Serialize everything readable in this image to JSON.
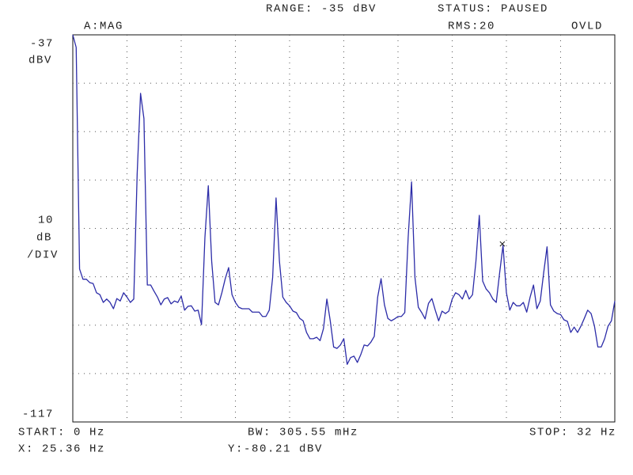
{
  "screen": {
    "range": "RANGE: -35 dBV",
    "status": "STATUS: PAUSED",
    "mode": "A:MAG",
    "rms": "RMS:20",
    "ovld": "OVLD",
    "start": "START: 0 Hz",
    "bw": "BW: 305.55 mHz",
    "stop": "STOP: 32 Hz",
    "cursor_x": "X: 25.36 Hz",
    "cursor_y": "Y:-80.21 dBV"
  },
  "chart_data": {
    "type": "line",
    "y_unit": "dBV",
    "ydiv": 10,
    "ydiv_unit": "dB",
    "ydiv_suffix": "/DIV",
    "ylim": [
      -37,
      -117
    ],
    "yticks": [
      -37,
      -117
    ],
    "xlim": [
      0,
      32
    ],
    "xdivisions": 10,
    "grid": true,
    "cursor": {
      "x": 25.36,
      "y": -80.21
    },
    "x": [
      0,
      0.2,
      0.4,
      0.6,
      0.8,
      1,
      1.2,
      1.4,
      1.6,
      1.8,
      2,
      2.2,
      2.4,
      2.6,
      2.8,
      3,
      3.2,
      3.4,
      3.6,
      3.8,
      4,
      4.2,
      4.4,
      4.6,
      4.8,
      5,
      5.2,
      5.4,
      5.6,
      5.8,
      6,
      6.2,
      6.4,
      6.6,
      6.8,
      7,
      7.2,
      7.4,
      7.6,
      7.8,
      8,
      8.2,
      8.4,
      8.6,
      8.8,
      9,
      9.2,
      9.4,
      9.6,
      9.8,
      10,
      10.2,
      10.4,
      10.6,
      10.8,
      11,
      11.2,
      11.4,
      11.6,
      11.8,
      12,
      12.2,
      12.4,
      12.6,
      12.8,
      13,
      13.2,
      13.4,
      13.6,
      13.8,
      14,
      14.2,
      14.4,
      14.6,
      14.8,
      15,
      15.2,
      15.4,
      15.6,
      15.8,
      16,
      16.2,
      16.4,
      16.6,
      16.8,
      17,
      17.2,
      17.4,
      17.6,
      17.8,
      18,
      18.2,
      18.4,
      18.6,
      18.8,
      19,
      19.2,
      19.4,
      19.6,
      19.8,
      20,
      20.2,
      20.4,
      20.6,
      20.8,
      21,
      21.2,
      21.4,
      21.6,
      21.8,
      22,
      22.2,
      22.4,
      22.6,
      22.8,
      23,
      23.2,
      23.4,
      23.6,
      23.8,
      24,
      24.2,
      24.4,
      24.6,
      24.8,
      25,
      25.2,
      25.4,
      25.6,
      25.8,
      26,
      26.2,
      26.4,
      26.6,
      26.8,
      27,
      27.2,
      27.4,
      27.6,
      27.8,
      28,
      28.2,
      28.4,
      28.6,
      28.8,
      29,
      29.2,
      29.4,
      29.6,
      29.8,
      30,
      30.2,
      30.4,
      30.6,
      30.8,
      31,
      31.2,
      31.4,
      31.6,
      31.8,
      32
    ],
    "series": [
      {
        "color": "#2c2ca8",
        "values": [
          -37,
          -39.6,
          -85.4,
          -87.5,
          -87.5,
          -88.2,
          -88.4,
          -90.3,
          -90.7,
          -92.3,
          -91.6,
          -92.3,
          -93.6,
          -91.5,
          -92,
          -90.3,
          -91.2,
          -92.3,
          -91.6,
          -65.8,
          -49.1,
          -54.3,
          -88.7,
          -88.7,
          -90,
          -91.2,
          -92.8,
          -91.6,
          -91.3,
          -92.6,
          -92,
          -92.3,
          -91,
          -93.9,
          -93.1,
          -93,
          -94.1,
          -93.9,
          -96.9,
          -78.9,
          -68.2,
          -83.8,
          -92.3,
          -92.8,
          -90.3,
          -87.4,
          -85.1,
          -90.7,
          -92.3,
          -93.3,
          -93.6,
          -93.6,
          -93.6,
          -94.3,
          -94.3,
          -94.3,
          -95.2,
          -95.2,
          -93.9,
          -87.1,
          -70.7,
          -83.8,
          -91.2,
          -92.3,
          -93,
          -94.1,
          -94.4,
          -95.6,
          -96.1,
          -98.5,
          -99.8,
          -99.8,
          -99.5,
          -100.2,
          -97.7,
          -91.6,
          -96.1,
          -101.5,
          -101.8,
          -101.1,
          -99.8,
          -105.1,
          -103.7,
          -103.4,
          -104.7,
          -103.1,
          -101.1,
          -101.3,
          -100.5,
          -99.3,
          -91.2,
          -87.4,
          -92.8,
          -95.6,
          -96.1,
          -95.7,
          -95.2,
          -95.2,
          -94.4,
          -78.9,
          -67.4,
          -87.1,
          -93.3,
          -94.4,
          -95.7,
          -92.5,
          -91.5,
          -93.9,
          -96.1,
          -94.1,
          -94.6,
          -94.1,
          -91.6,
          -90.3,
          -90.7,
          -91.6,
          -89.8,
          -91.6,
          -90.7,
          -83.8,
          -74.3,
          -87.9,
          -89.5,
          -90.3,
          -91.6,
          -92.3,
          -86.2,
          -80.5,
          -90.3,
          -93.9,
          -92.3,
          -93,
          -93,
          -92.3,
          -94.3,
          -91.2,
          -88.7,
          -93.6,
          -92,
          -86.2,
          -80.8,
          -92.8,
          -94.1,
          -94.6,
          -94.8,
          -95.9,
          -96.2,
          -98.5,
          -97.4,
          -98.5,
          -97.2,
          -95.6,
          -93.9,
          -94.6,
          -97.2,
          -101.5,
          -101.5,
          -99.8,
          -97.2,
          -96.1,
          -92
        ]
      }
    ]
  }
}
